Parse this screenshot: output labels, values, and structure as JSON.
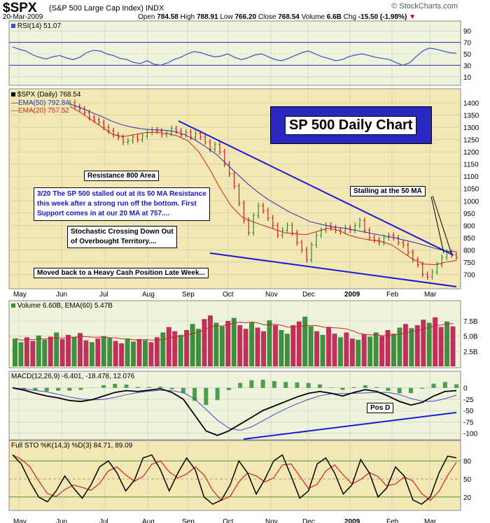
{
  "header": {
    "symbol": "$SPX",
    "name": "(S&P 500 Large Cap Index) INDX",
    "date": "20-Mar-2009",
    "open_label": "Open",
    "open": "784.58",
    "high_label": "High",
    "high": "788.91",
    "low_label": "Low",
    "low": "766.20",
    "close_label": "Close",
    "close": "768.54",
    "volume_label": "Volume",
    "volume": "6.6B",
    "chg_label": "Chg",
    "chg": "-15.50 (-1.98%)",
    "logo": "© StockCharts.com"
  },
  "rsi_panel": {
    "label": "RSI(14) 51.07",
    "ticks": [
      "90",
      "70",
      "50",
      "30",
      "10"
    ]
  },
  "price_panel": {
    "label": "$SPX (Daily) 768.54",
    "ema50": "EMA(50) 792.84",
    "ema20": "EMA(20) 757.52",
    "ticks": [
      "1400",
      "1350",
      "1300",
      "1250",
      "1200",
      "1150",
      "1100",
      "1050",
      "1000",
      "950",
      "900",
      "850",
      "800",
      "750",
      "700"
    ],
    "months": [
      "May",
      "Jun",
      "Jul",
      "Aug",
      "Sep",
      "Oct",
      "Nov",
      "Dec",
      "2009",
      "Feb",
      "Mar"
    ],
    "title": "SP 500 Daily Chart",
    "annotations": {
      "resistance": "Resistance 800 Area",
      "note_line1": "3/20  The SP 500 stalled out at its 50 MA Resistance",
      "note_line2": "this week after a strong run off the bottom.  First",
      "note_line3": "Support comes in at our 20 MA at 757....",
      "stochastic_line1": "Stochastic Crossing Down Out",
      "stochastic_line2": "of Overbought Territory....",
      "cash": "Moved back to a Heavy Cash Position Late Week...",
      "stalling": "Stalling at the 50 MA"
    }
  },
  "volume_panel": {
    "label": "Volume 6.60B, EMA(60) 5.47B",
    "ticks": [
      "7.5B",
      "5.0B",
      "2.5B"
    ]
  },
  "macd_panel": {
    "label": "MACD(12,26,9) -6.401, -18.478, 12.076",
    "ticks": [
      "0",
      "-25",
      "-50",
      "-75",
      "-100"
    ],
    "annotation": "Pos D"
  },
  "sto_panel": {
    "label": "Full STO %K(14,3) %D(3) 84.71, 89.09",
    "ticks": [
      "80",
      "50",
      "20"
    ],
    "months": [
      "May",
      "Jun",
      "Jul",
      "Aug",
      "Sep",
      "Oct",
      "Nov",
      "Dec",
      "2009",
      "Feb",
      "Mar"
    ]
  },
  "colors": {
    "panel_bg": "#eef3dc",
    "price_bg": "#f3e8b3",
    "sto_bg": "#f3e8b3",
    "grid": "#c8c8c8",
    "up_bar": "#2e8b2e",
    "down_bar": "#cc1f1f",
    "ema50": "#2b2bb0",
    "ema20": "#d22020",
    "rsi": "#3a4ecc",
    "trendline": "#1a1ad8",
    "vol_up": "#3f8f3f",
    "vol_down": "#c0305a",
    "title_box": "#2828c0"
  },
  "chart_data": [
    {
      "type": "line",
      "name": "RSI(14)",
      "ylim": [
        0,
        100
      ],
      "y": [
        62,
        58,
        55,
        48,
        44,
        41,
        45,
        47,
        43,
        40,
        44,
        52,
        56,
        55,
        50,
        47,
        42,
        40,
        35,
        33,
        38,
        32,
        30,
        34,
        40,
        44,
        50,
        54,
        52,
        48,
        45,
        46,
        50,
        44,
        40,
        43,
        48,
        50,
        45,
        40,
        38,
        42,
        47,
        52,
        55,
        50,
        45,
        42,
        38,
        40,
        45,
        48,
        50,
        47,
        44,
        42,
        40,
        35,
        30,
        34,
        45,
        55,
        60,
        58,
        55,
        52,
        51
      ]
    },
    {
      "type": "line",
      "name": "$SPX (Daily)",
      "ylim": [
        650,
        1420
      ],
      "y": [
        1400,
        1385,
        1375,
        1360,
        1340,
        1330,
        1320,
        1300,
        1285,
        1270,
        1260,
        1240,
        1245,
        1260,
        1250,
        1265,
        1280,
        1290,
        1285,
        1270,
        1275,
        1295,
        1285,
        1270,
        1280,
        1260,
        1275,
        1260,
        1240,
        1210,
        1230,
        1200,
        1150,
        1110,
        1060,
        990,
        920,
        870,
        940,
        980,
        960,
        930,
        900,
        860,
        880,
        900,
        870,
        830,
        800,
        760,
        820,
        860,
        880,
        900,
        890,
        880,
        875,
        890,
        880,
        900,
        920,
        880,
        850,
        840,
        830,
        850,
        860,
        850,
        830,
        820,
        790,
        760,
        740,
        700,
        690,
        710,
        740,
        770,
        790,
        780,
        769
      ]
    },
    {
      "type": "line",
      "name": "EMA(50)",
      "ylim": [
        650,
        1420
      ],
      "y": [
        1395,
        1380,
        1362,
        1345,
        1325,
        1310,
        1300,
        1293,
        1290,
        1288,
        1283,
        1270,
        1248,
        1220,
        1190,
        1150,
        1110,
        1070,
        1035,
        1005,
        980,
        955,
        935,
        915,
        905,
        895,
        890,
        883,
        875,
        866,
        858,
        850,
        840,
        830,
        818,
        806,
        795,
        792
      ]
    },
    {
      "type": "line",
      "name": "EMA(20)",
      "ylim": [
        650,
        1420
      ],
      "y": [
        1385,
        1360,
        1330,
        1300,
        1270,
        1262,
        1270,
        1278,
        1280,
        1275,
        1265,
        1245,
        1200,
        1130,
        1050,
        980,
        935,
        915,
        900,
        885,
        870,
        865,
        862,
        875,
        888,
        880,
        860,
        848,
        840,
        835,
        820,
        790,
        760,
        742,
        740,
        750,
        757
      ]
    },
    {
      "type": "bar",
      "name": "Volume",
      "ylim": [
        0,
        9
      ],
      "values": [
        4.6,
        4.0,
        4.8,
        4.2,
        5.1,
        4.4,
        4.9,
        5.6,
        4.5,
        5.2,
        4.8,
        5.5,
        4.3,
        4.0,
        4.6,
        5.0,
        4.7,
        4.2,
        3.8,
        4.6,
        4.1,
        4.5,
        4.3,
        4.0,
        4.8,
        5.6,
        6.5,
        5.8,
        5.2,
        6.0,
        7.0,
        6.2,
        7.8,
        8.4,
        7.2,
        6.6,
        7.5,
        8.0,
        6.8,
        6.2,
        7.3,
        6.4,
        5.8,
        7.6,
        6.8,
        6.0,
        5.4,
        6.8,
        7.4,
        8.2,
        6.6,
        5.8,
        5.2,
        6.5,
        5.4,
        4.8,
        5.6,
        4.6,
        4.4,
        5.3,
        4.9,
        5.6,
        5.0,
        6.0,
        5.4,
        6.4,
        7.0,
        6.3,
        6.8,
        7.7,
        7.2,
        8.1,
        6.5,
        7.4,
        6.6
      ]
    },
    {
      "type": "line",
      "name": "MACD(12,26,9)",
      "ylim": [
        -110,
        15
      ],
      "y": [
        0,
        -5,
        -12,
        -18,
        -22,
        -28,
        -30,
        -26,
        -18,
        -10,
        -6,
        -8,
        -5,
        -2,
        -10,
        -25,
        -60,
        -95,
        -105,
        -95,
        -80,
        -65,
        -50,
        -40,
        -30,
        -20,
        -12,
        -8,
        -12,
        -18,
        -10,
        -4,
        -8,
        -18,
        -30,
        -38,
        -32,
        -18,
        -8,
        -6
      ]
    },
    {
      "type": "line",
      "name": "Full STO %K(14,3)",
      "ylim": [
        0,
        100
      ],
      "y": [
        90,
        75,
        45,
        20,
        12,
        30,
        55,
        35,
        18,
        40,
        70,
        80,
        60,
        30,
        48,
        85,
        90,
        65,
        30,
        60,
        85,
        65,
        20,
        8,
        15,
        40,
        80,
        60,
        25,
        50,
        80,
        90,
        55,
        18,
        30,
        75,
        85,
        60,
        25,
        40,
        82,
        60,
        20,
        35,
        70,
        55,
        15,
        8,
        20,
        60,
        88,
        85
      ]
    }
  ]
}
